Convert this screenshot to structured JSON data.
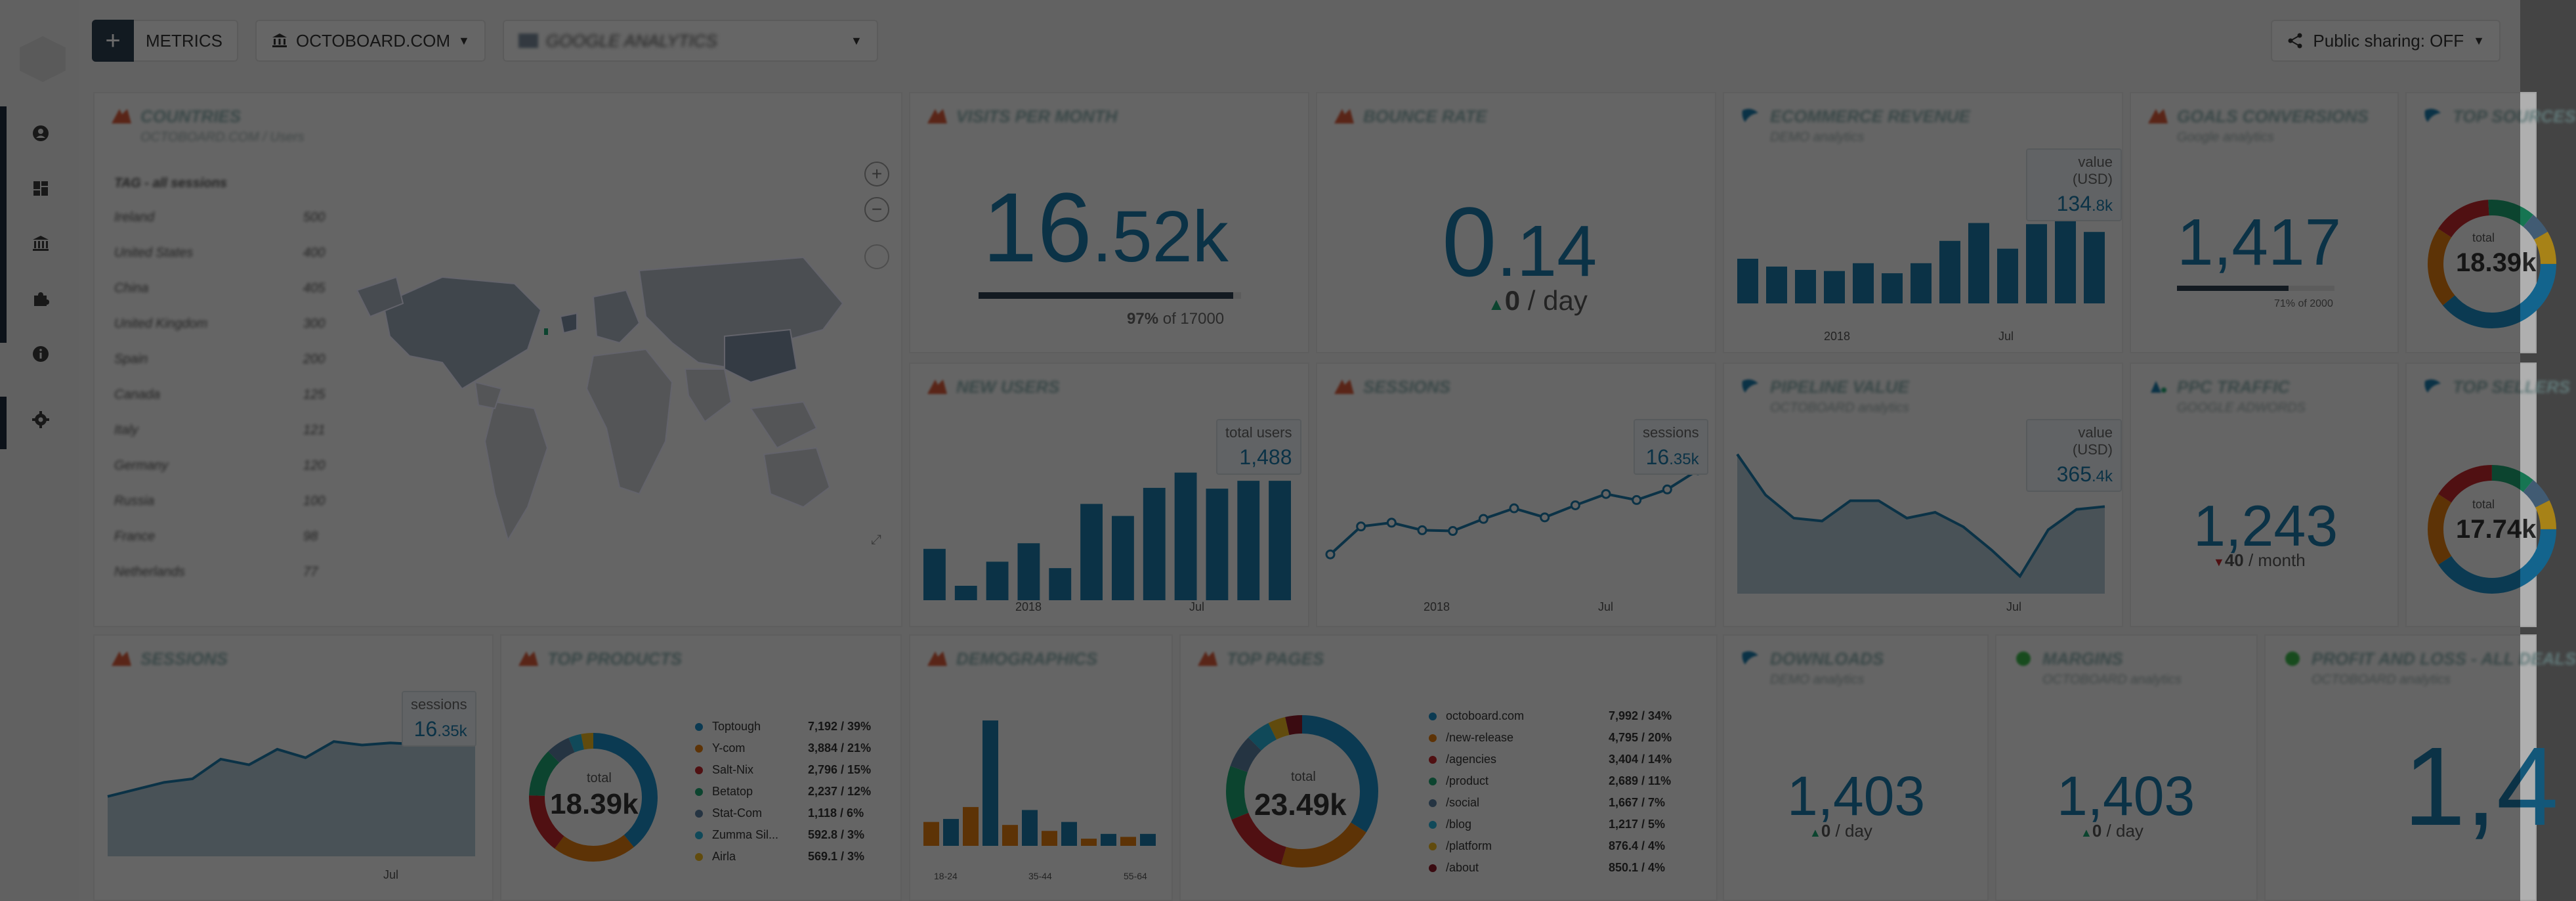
{
  "topbar": {
    "metrics_label": "METRICS",
    "company_label": "OCTOBOARD.COM",
    "datasource_label": "GOOGLE ANALYTICS",
    "share_label": "Public sharing: OFF"
  },
  "sidebar": {
    "icons": [
      "user-icon",
      "dashboard-icon",
      "bank-icon",
      "puzzle-icon",
      "info-icon",
      "settings-icon"
    ]
  },
  "colors": {
    "accent": "#1a79a8",
    "bar": "#1a79a8",
    "orange": "#e07a10",
    "topbar_button": "#2c3e50"
  },
  "cards": {
    "countries": {
      "title": "COUNTRIES",
      "subtitle": "OCTOBOARD.COM / Users",
      "list_header": "TAG - all sessions",
      "rows": [
        {
          "name": "Ireland",
          "value": "500"
        },
        {
          "name": "United States",
          "value": "400"
        },
        {
          "name": "China",
          "value": "405"
        },
        {
          "name": "United Kingdom",
          "value": "300"
        },
        {
          "name": "Spain",
          "value": "200"
        },
        {
          "name": "Canada",
          "value": "125"
        },
        {
          "name": "Italy",
          "value": "121"
        },
        {
          "name": "Germany",
          "value": "120"
        },
        {
          "name": "Russia",
          "value": "100"
        },
        {
          "name": "France",
          "value": "98"
        },
        {
          "name": "Netherlands",
          "value": "77"
        }
      ]
    },
    "visits_per_month": {
      "title": "VISITS PER MONTH",
      "value_main": "16",
      "value_decimal": ".52k",
      "progress": 0.97,
      "progress_pct": "97%",
      "progress_of": "of 17000"
    },
    "bounce_rate": {
      "title": "BOUNCE RATE",
      "value_main": "0",
      "value_decimal": ".14",
      "delta": "0",
      "delta_unit": "/ day"
    },
    "ecommerce_revenue": {
      "title": "ECOMMERCE REVENUE",
      "subtitle": "DEMO analytics",
      "tooltip_label": "value (USD)",
      "tooltip_value": "134",
      "tooltip_suffix": ".8k",
      "x_labels": [
        "2018",
        "Jul"
      ]
    },
    "goals_conversions": {
      "title": "GOALS CONVERSIONS",
      "subtitle": "Google analytics",
      "value": "1,417",
      "progress": 0.71,
      "progress_text": "71% of 2000"
    },
    "top_sources_1": {
      "title": "TOP SOURCES",
      "donut_label": "total",
      "donut_value": "18.39k"
    },
    "new_users": {
      "title": "NEW USERS",
      "tooltip_label": "total users",
      "tooltip_value": "1,488",
      "x_labels": [
        "2018",
        "Jul"
      ]
    },
    "sessions_line": {
      "title": "SESSIONS",
      "tooltip_label": "sessions",
      "tooltip_value": "16",
      "tooltip_suffix": ".35k",
      "x_labels": [
        "2018",
        "Jul"
      ]
    },
    "pipeline_value": {
      "title": "PIPELINE VALUE",
      "subtitle": "OCTOBOARD analytics",
      "tooltip_label": "value (USD)",
      "tooltip_value": "365",
      "tooltip_suffix": ".4k",
      "x_labels": [
        "Jul"
      ]
    },
    "ppc_traffic": {
      "title": "PPC TRAFFIC",
      "subtitle": "GOOGLE ADWORDS",
      "value": "1,243",
      "delta": "40",
      "delta_unit": "/ month"
    },
    "top_sellers": {
      "title": "TOP SELLERS",
      "donut_label": "total",
      "donut_value": "17.74k"
    },
    "sessions_area": {
      "title": "SESSIONS",
      "tooltip_label": "sessions",
      "tooltip_value": "16",
      "tooltip_suffix": ".35k",
      "x_labels": [
        "Jul"
      ]
    },
    "top_products": {
      "title": "TOP PRODUCTS",
      "donut_label": "total",
      "donut_value": "18.39k",
      "legend": [
        {
          "name": "Toptough",
          "value": "7,192",
          "pct": "39%",
          "color": "#1a8bc4"
        },
        {
          "name": "Y-com",
          "value": "3,884",
          "pct": "21%",
          "color": "#e07a10"
        },
        {
          "name": "Salt-Nix",
          "value": "2,796",
          "pct": "15%",
          "color": "#c0282d"
        },
        {
          "name": "Betatop",
          "value": "2,237",
          "pct": "12%",
          "color": "#1fa372"
        },
        {
          "name": "Stat-Com",
          "value": "1,118",
          "pct": "6%",
          "color": "#5a7fa0"
        },
        {
          "name": "Zumma Sil...",
          "value": "592.8",
          "pct": "3%",
          "color": "#27b0d6"
        },
        {
          "name": "Airla",
          "value": "569.1",
          "pct": "3%",
          "color": "#e8b420"
        }
      ]
    },
    "demographics": {
      "title": "DEMOGRAPHICS",
      "x_labels": [
        "18-24",
        "35-44",
        "55-64"
      ]
    },
    "top_pages": {
      "title": "TOP PAGES",
      "donut_label": "total",
      "donut_value": "23.49k",
      "legend": [
        {
          "name": "octoboard.com",
          "value": "7,992",
          "pct": "34%",
          "color": "#1a8bc4"
        },
        {
          "name": "/new-release",
          "value": "4,795",
          "pct": "20%",
          "color": "#e07a10"
        },
        {
          "name": "/agencies",
          "value": "3,404",
          "pct": "14%",
          "color": "#c0282d"
        },
        {
          "name": "/product",
          "value": "2,689",
          "pct": "11%",
          "color": "#1fa372"
        },
        {
          "name": "/social",
          "value": "1,667",
          "pct": "7%",
          "color": "#5a7fa0"
        },
        {
          "name": "/blog",
          "value": "1,217",
          "pct": "5%",
          "color": "#27b0d6"
        },
        {
          "name": "/platform",
          "value": "876.4",
          "pct": "4%",
          "color": "#e8b420"
        },
        {
          "name": "/about",
          "value": "850.1",
          "pct": "4%",
          "color": "#8b1a2a"
        }
      ]
    },
    "downloads": {
      "title": "DOWNLOADS",
      "subtitle": "DEMO analytics",
      "value": "1,403",
      "delta": "0",
      "delta_unit": "/ day"
    },
    "margins": {
      "title": "MARGINS",
      "subtitle": "OCTOBOARD analytics",
      "value": "1,403",
      "delta": "0",
      "delta_unit": "/ day"
    },
    "profit_loss": {
      "title": "PROFIT AND LOSS - ALL DEALS",
      "subtitle": "OCTOBOARD analytics",
      "value": "1,4"
    }
  },
  "chart_data": [
    {
      "type": "bar",
      "title": "",
      "x_ticks": [
        "2018",
        "Jul"
      ],
      "values": [
        40,
        33,
        30,
        29,
        36,
        27,
        36,
        56,
        72,
        49,
        71,
        90,
        64
      ]
    },
    {
      "type": "bar",
      "title": "",
      "x_ticks": [
        "2018",
        "Jul"
      ],
      "values": [
        640,
        180,
        480,
        710,
        400,
        1200,
        1050,
        1400,
        1590,
        1390,
        1488,
        1488
      ]
    },
    {
      "type": "line",
      "title": "",
      "x_ticks": [
        "2018",
        "Jul"
      ],
      "values": [
        5.2,
        8.9,
        9.4,
        8.4,
        8.3,
        9.9,
        11.3,
        10.1,
        11.7,
        13.2,
        12.4,
        13.8,
        16.35
      ]
    },
    {
      "type": "area",
      "title": "",
      "x_ticks": [
        "Jul"
      ],
      "values": [
        340,
        270,
        230,
        225,
        260,
        260,
        230,
        240,
        215,
        175,
        130,
        210,
        245,
        250
      ]
    },
    {
      "type": "area",
      "title": "",
      "x_ticks": [
        "Jul"
      ],
      "values": [
        8.5,
        9.5,
        10.5,
        11.0,
        13.8,
        13.0,
        15.2,
        14.0,
        16.3,
        15.8,
        16.1,
        15.9,
        17.4,
        20.5
      ]
    },
    {
      "type": "bar",
      "title": "",
      "x_ticks": [
        "18-24",
        "35-44",
        "55-64"
      ],
      "series": [
        {
          "values": [
            0.45,
            2.1,
            0.6,
            0.4,
            0.2,
            0.2
          ]
        },
        {
          "values": [
            0.4,
            0.65,
            0.35,
            0.25,
            0.12,
            0.15
          ]
        }
      ]
    }
  ]
}
